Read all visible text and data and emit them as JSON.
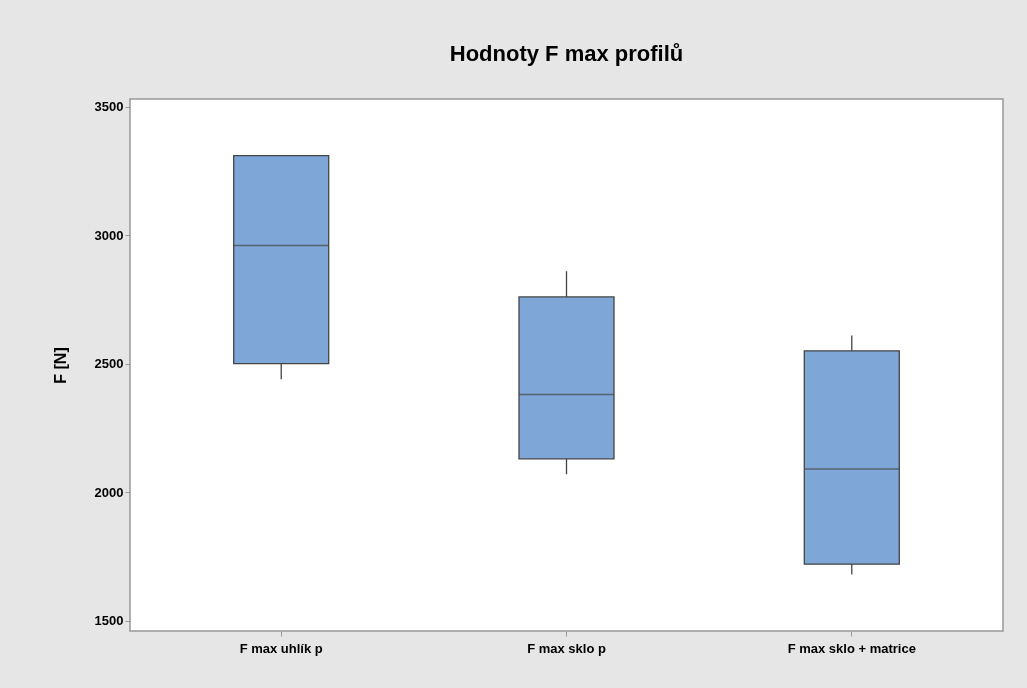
{
  "chart_data": {
    "type": "box",
    "title": "Hodnoty F max profilů",
    "ylabel": "F [N]",
    "categories": [
      "F max uhlík p",
      "F max sklo p",
      "F max sklo + matrice"
    ],
    "boxes": [
      {
        "low": 2440,
        "q1": 2500,
        "median": 2960,
        "q3": 3310,
        "high": 3310
      },
      {
        "low": 2070,
        "q1": 2130,
        "median": 2380,
        "q3": 2760,
        "high": 2860
      },
      {
        "low": 1680,
        "q1": 1720,
        "median": 2090,
        "q3": 2550,
        "high": 2610
      }
    ],
    "color": "#7ea7d8",
    "ylim": [
      1460,
      3530
    ],
    "yticks": [
      1500,
      2000,
      2500,
      3000,
      3500
    ],
    "grid": false
  }
}
